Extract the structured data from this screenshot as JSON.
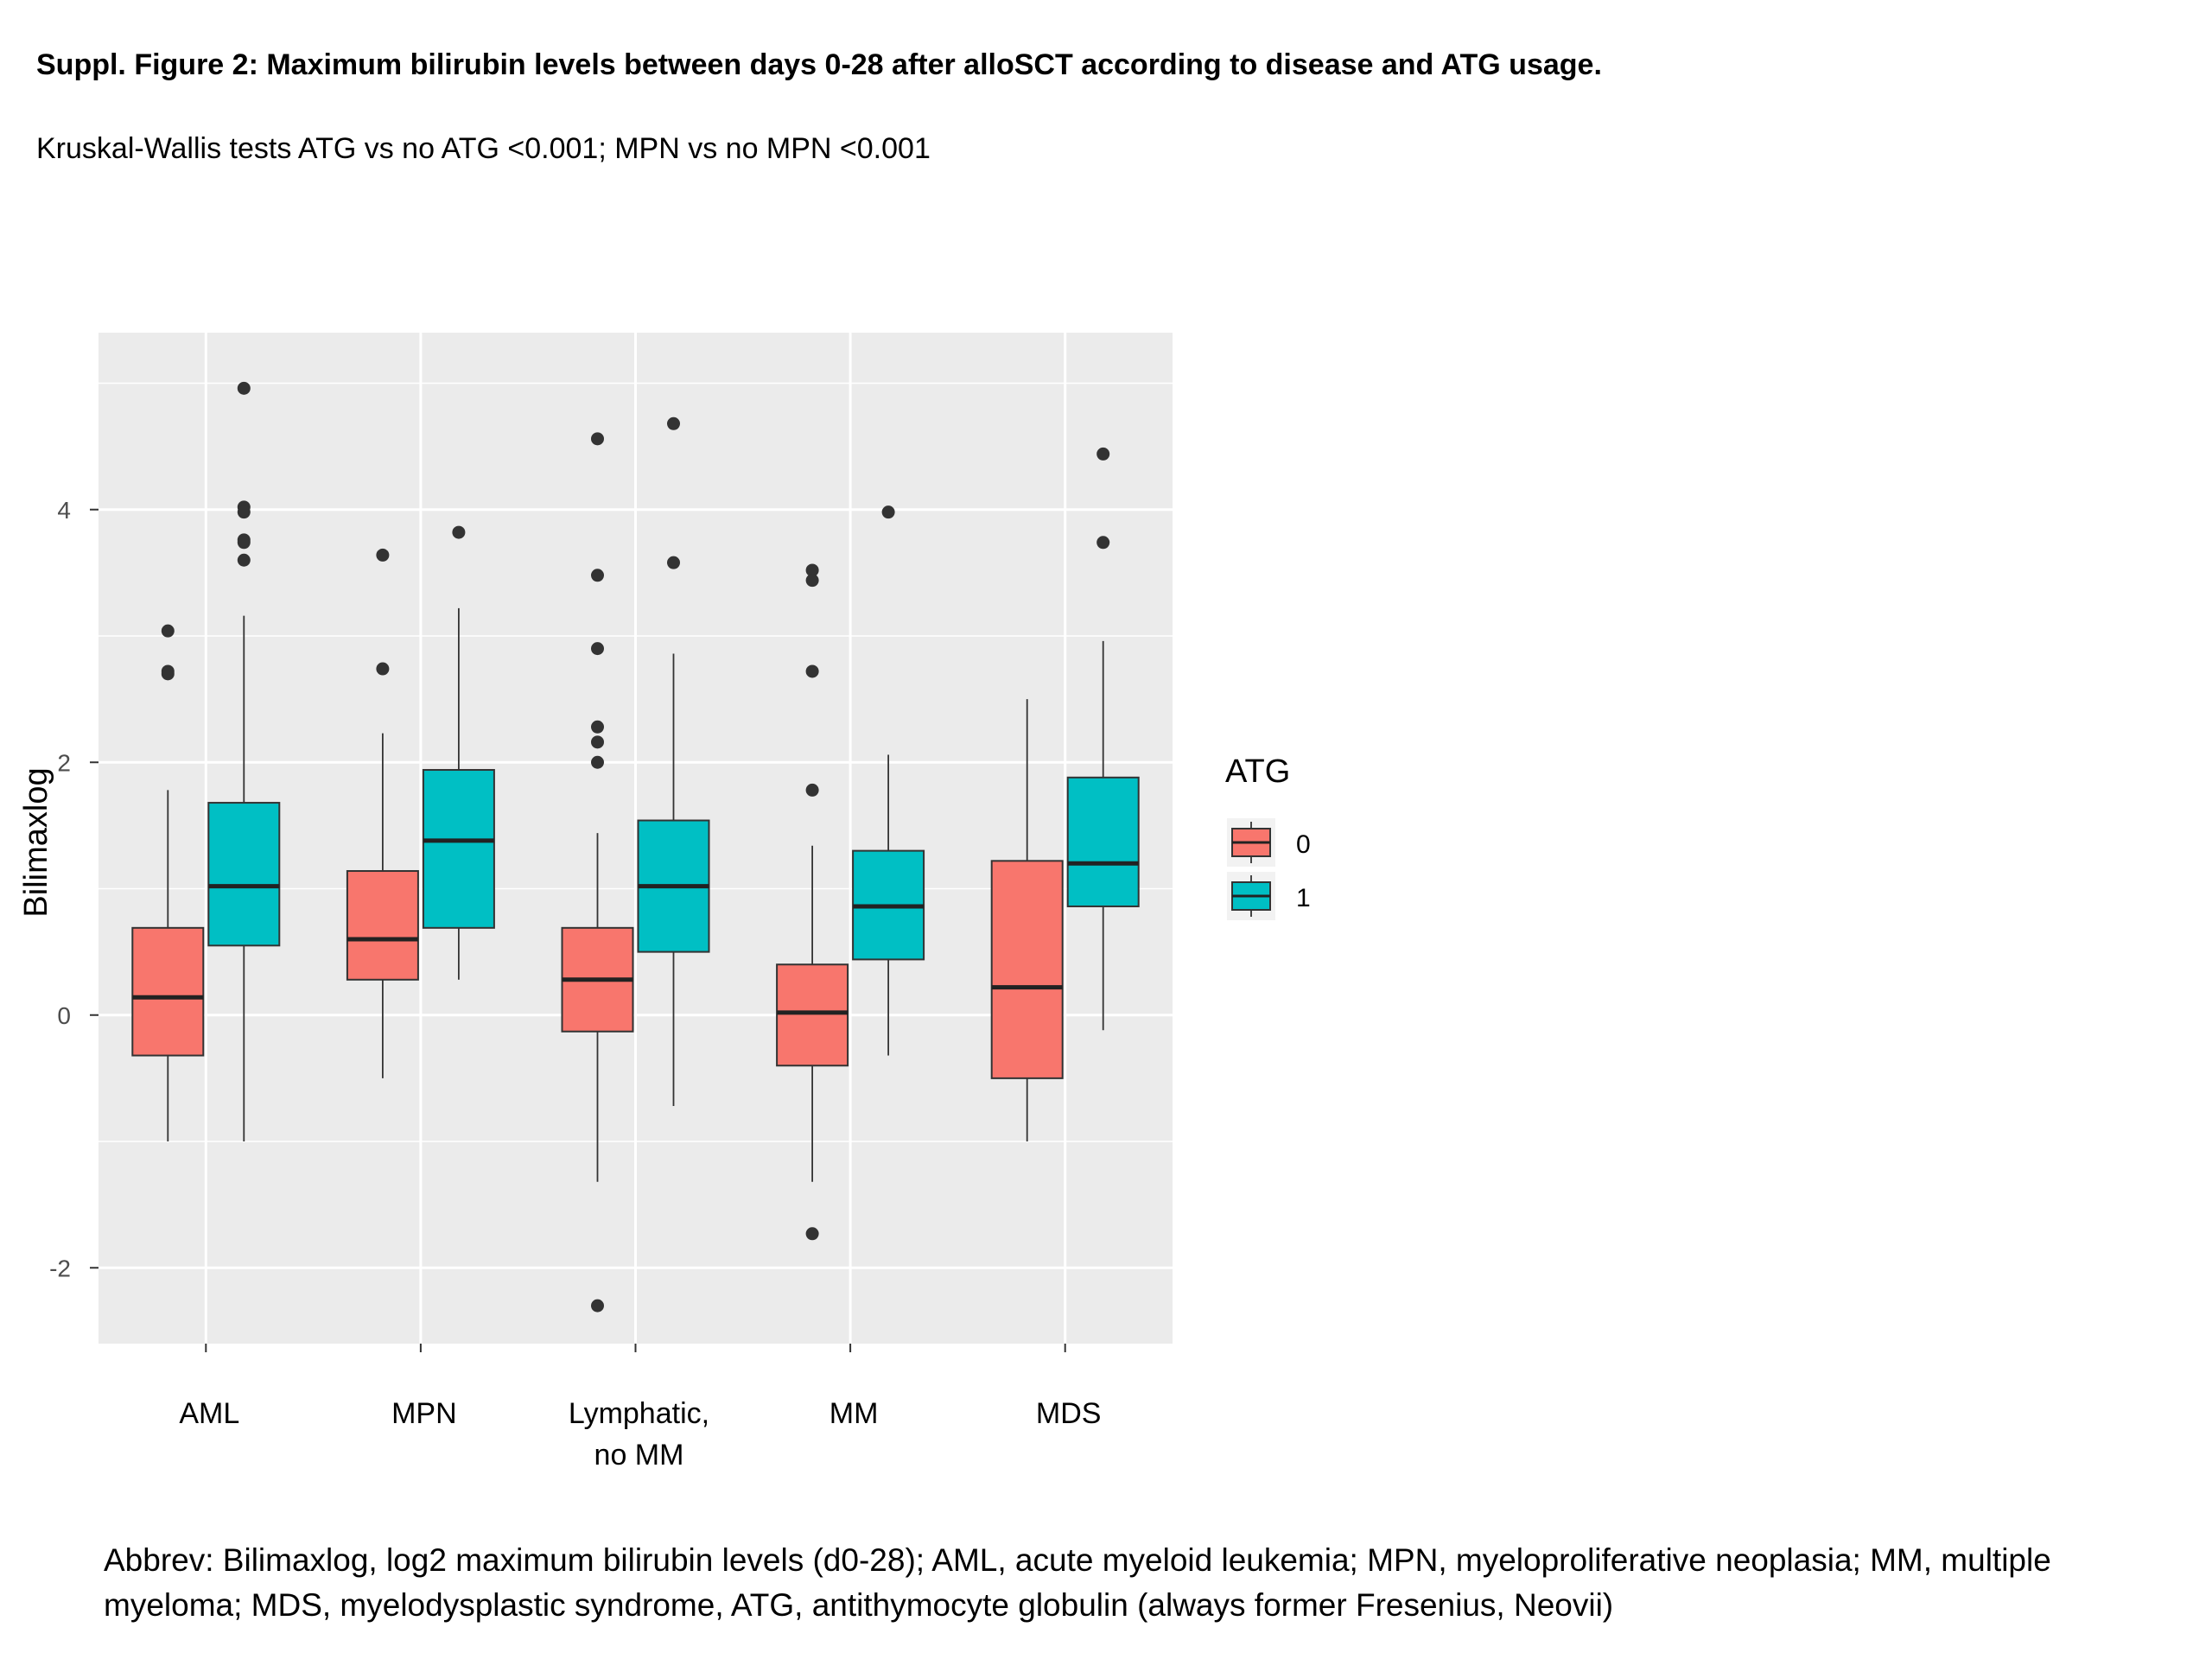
{
  "figure": {
    "title": "Suppl. Figure 2: Maximum bilirubin levels between days 0-28 after alloSCT according to disease and ATG usage.",
    "subtitle": "Kruskal-Wallis tests ATG vs no ATG <0.001; MPN vs no MPN <0.001",
    "abbreviations": "Abbrev: Bilimaxlog, log2 maximum bilirubin levels (d0-28); AML, acute myeloid leukemia; MPN, myeloproliferative neoplasia; MM, multiple myeloma; MDS, myelodysplastic syndrome, ATG, antithymocyte  globulin (always  former Fresenius, Neovii)"
  },
  "chart_data": {
    "type": "boxplot",
    "xlabel": "",
    "ylabel": "Bilimaxlog",
    "ylim": [
      -2.6,
      5.4
    ],
    "yticks": [
      -2,
      0,
      2,
      4
    ],
    "ytick_labels": [
      "-2",
      "0",
      "2",
      "4"
    ],
    "categories": [
      {
        "key": "AML",
        "lines": [
          "AML"
        ]
      },
      {
        "key": "MPN",
        "lines": [
          "MPN"
        ]
      },
      {
        "key": "Lymphatic",
        "lines": [
          "Lymphatic,",
          "no MM"
        ]
      },
      {
        "key": "MM",
        "lines": [
          "MM"
        ]
      },
      {
        "key": "MDS",
        "lines": [
          "MDS"
        ]
      }
    ],
    "legend": {
      "title": "ATG",
      "placement": "right",
      "entries": [
        {
          "label": "0",
          "color": "#F8766D"
        },
        {
          "label": "1",
          "color": "#00BFC4"
        }
      ]
    },
    "grid": true,
    "panel_background": "#EBEBEB",
    "series": [
      {
        "group": "0",
        "color": "#F8766D",
        "boxes": [
          {
            "category": "AML",
            "whisker_low": -1.0,
            "q1": -0.32,
            "median": 0.14,
            "q3": 0.69,
            "whisker_high": 1.78,
            "outliers": [
              3.04,
              2.7,
              2.72
            ]
          },
          {
            "category": "MPN",
            "whisker_low": -0.5,
            "q1": 0.28,
            "median": 0.6,
            "q3": 1.14,
            "whisker_high": 2.23,
            "outliers": [
              3.64,
              2.74
            ]
          },
          {
            "category": "Lymphatic",
            "whisker_low": -1.32,
            "q1": -0.13,
            "median": 0.28,
            "q3": 0.69,
            "whisker_high": 1.44,
            "outliers": [
              4.56,
              3.48,
              2.9,
              2.28,
              2.16,
              2.0,
              -2.3
            ]
          },
          {
            "category": "MM",
            "whisker_low": -1.32,
            "q1": -0.4,
            "median": 0.02,
            "q3": 0.4,
            "whisker_high": 1.34,
            "outliers": [
              3.52,
              3.44,
              2.72,
              1.78,
              -1.73
            ]
          },
          {
            "category": "MDS",
            "whisker_low": -1.0,
            "q1": -0.5,
            "median": 0.22,
            "q3": 1.22,
            "whisker_high": 2.5,
            "outliers": []
          }
        ]
      },
      {
        "group": "1",
        "color": "#00BFC4",
        "boxes": [
          {
            "category": "AML",
            "whisker_low": -1.0,
            "q1": 0.55,
            "median": 1.02,
            "q3": 1.68,
            "whisker_high": 3.16,
            "outliers": [
              4.96,
              4.02,
              3.98,
              3.76,
              3.74,
              3.6
            ]
          },
          {
            "category": "MPN",
            "whisker_low": 0.28,
            "q1": 0.69,
            "median": 1.38,
            "q3": 1.94,
            "whisker_high": 3.22,
            "outliers": [
              3.82
            ]
          },
          {
            "category": "Lymphatic",
            "whisker_low": -0.72,
            "q1": 0.5,
            "median": 1.02,
            "q3": 1.54,
            "whisker_high": 2.86,
            "outliers": [
              4.68,
              3.58
            ]
          },
          {
            "category": "MM",
            "whisker_low": -0.32,
            "q1": 0.44,
            "median": 0.86,
            "q3": 1.3,
            "whisker_high": 2.06,
            "outliers": [
              3.98
            ]
          },
          {
            "category": "MDS",
            "whisker_low": -0.12,
            "q1": 0.86,
            "median": 1.2,
            "q3": 1.88,
            "whisker_high": 2.96,
            "outliers": [
              4.44,
              3.74
            ]
          }
        ]
      }
    ]
  }
}
